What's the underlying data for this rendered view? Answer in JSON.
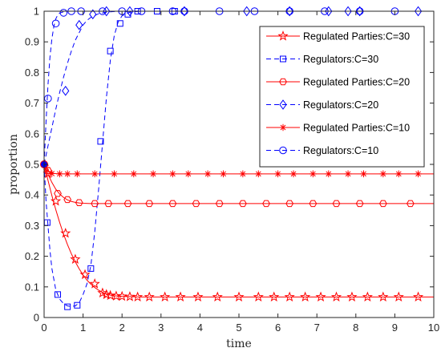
{
  "chart_data": {
    "type": "line",
    "title": "",
    "xlabel": "time",
    "ylabel": "proportion",
    "xlim": [
      0,
      10
    ],
    "ylim": [
      0,
      1
    ],
    "xticks": [
      "0",
      "1",
      "2",
      "3",
      "4",
      "5",
      "6",
      "7",
      "8",
      "9",
      "10"
    ],
    "yticks": [
      "0",
      "0.1",
      "0.2",
      "0.3",
      "0.4",
      "0.5",
      "0.6",
      "0.7",
      "0.8",
      "0.9",
      "1"
    ],
    "grid": false,
    "legend_position": "top-right",
    "colors": {
      "regulated": "#ff0000",
      "regulators": "#0000ff"
    },
    "series": [
      {
        "name": "Regulated Parties:C=30",
        "color": "#ff0000",
        "line": "solid",
        "marker": "star5",
        "x": [
          0,
          0.1,
          0.2,
          0.3,
          0.4,
          0.5,
          0.6,
          0.7,
          0.8,
          0.9,
          1.0,
          1.1,
          1.2,
          1.3,
          1.4,
          1.5,
          1.6,
          1.7,
          1.8,
          2.0,
          2.2,
          2.5,
          2.8,
          3.0,
          10.0
        ],
        "y": [
          0.5,
          0.448,
          0.398,
          0.352,
          0.31,
          0.272,
          0.238,
          0.208,
          0.182,
          0.159,
          0.139,
          0.122,
          0.109,
          0.098,
          0.089,
          0.082,
          0.077,
          0.073,
          0.071,
          0.069,
          0.068,
          0.067,
          0.067,
          0.067,
          0.067
        ],
        "markers_x": [
          0.1,
          0.3,
          0.55,
          0.8,
          1.05,
          1.3,
          1.5,
          1.6,
          1.7,
          1.85,
          2.0,
          2.2,
          2.4,
          2.7,
          3.1,
          3.5,
          3.95,
          4.45,
          5.0,
          5.5,
          5.9,
          6.3,
          6.7,
          7.1,
          7.5,
          7.9,
          8.3,
          8.7,
          9.1,
          9.6
        ],
        "markers_y": [
          0.47,
          0.38,
          0.275,
          0.19,
          0.14,
          0.11,
          0.08,
          0.075,
          0.072,
          0.07,
          0.069,
          0.068,
          0.067,
          0.067,
          0.067,
          0.067,
          0.067,
          0.067,
          0.067,
          0.067,
          0.067,
          0.067,
          0.067,
          0.067,
          0.067,
          0.067,
          0.067,
          0.067,
          0.067,
          0.067
        ]
      },
      {
        "name": "Regulators:C=30",
        "color": "#0000ff",
        "line": "dashed",
        "marker": "square",
        "x": [
          0,
          0.05,
          0.1,
          0.15,
          0.2,
          0.3,
          0.4,
          0.5,
          0.6,
          0.7,
          0.8,
          0.9,
          1.0,
          1.1,
          1.2,
          1.3,
          1.4,
          1.5,
          1.6,
          1.7,
          1.8,
          1.9,
          2.0,
          2.2,
          2.5,
          10.0
        ],
        "y": [
          0.5,
          0.38,
          0.3,
          0.22,
          0.16,
          0.09,
          0.06,
          0.045,
          0.038,
          0.036,
          0.038,
          0.048,
          0.075,
          0.11,
          0.17,
          0.28,
          0.42,
          0.57,
          0.72,
          0.84,
          0.92,
          0.965,
          0.985,
          0.997,
          1.0,
          1.0
        ],
        "markers_x": [
          0.08,
          0.35,
          0.6,
          0.85,
          1.2,
          1.45,
          1.7,
          1.95,
          2.15,
          2.4,
          2.9,
          3.35
        ],
        "markers_y": [
          0.31,
          0.075,
          0.035,
          0.04,
          0.16,
          0.575,
          0.87,
          0.96,
          0.99,
          1.0,
          1.0,
          1.0
        ]
      },
      {
        "name": "Regulated Parties:C=20",
        "color": "#ff0000",
        "line": "solid",
        "marker": "hexagon",
        "x": [
          0,
          0.1,
          0.2,
          0.3,
          0.4,
          0.5,
          0.6,
          0.7,
          0.8,
          0.9,
          1.0,
          1.2,
          1.5,
          2.0,
          10.0
        ],
        "y": [
          0.5,
          0.468,
          0.441,
          0.419,
          0.403,
          0.392,
          0.384,
          0.379,
          0.376,
          0.374,
          0.373,
          0.372,
          0.372,
          0.372,
          0.372
        ],
        "markers_x": [
          0.1,
          0.35,
          0.6,
          0.9,
          1.3,
          1.65,
          2.15,
          2.7,
          3.3,
          3.9,
          4.5,
          5.1,
          5.7,
          6.3,
          6.9,
          7.5,
          8.1,
          8.7,
          9.4
        ],
        "markers_y": [
          0.48,
          0.405,
          0.385,
          0.375,
          0.372,
          0.372,
          0.372,
          0.372,
          0.372,
          0.372,
          0.372,
          0.372,
          0.372,
          0.372,
          0.372,
          0.372,
          0.372,
          0.372,
          0.372
        ]
      },
      {
        "name": "Regulators:C=20",
        "color": "#0000ff",
        "line": "dashed",
        "marker": "diamond",
        "x": [
          0,
          0.1,
          0.2,
          0.3,
          0.4,
          0.5,
          0.6,
          0.7,
          0.8,
          0.9,
          1.0,
          1.1,
          1.2,
          1.4,
          1.6,
          1.8,
          2.0,
          10.0
        ],
        "y": [
          0.5,
          0.56,
          0.62,
          0.68,
          0.735,
          0.785,
          0.83,
          0.87,
          0.905,
          0.93,
          0.955,
          0.97,
          0.98,
          0.992,
          0.997,
          0.999,
          1.0,
          1.0
        ],
        "markers_x": [
          0.55,
          0.9,
          1.25,
          1.6,
          2.2,
          3.6,
          5.2,
          6.3,
          7.3,
          7.8,
          8.1,
          9.6
        ],
        "markers_y": [
          0.74,
          0.955,
          0.99,
          1.0,
          1.0,
          1.0,
          1.0,
          1.0,
          1.0,
          1.0,
          1.0,
          1.0
        ]
      },
      {
        "name": "Regulated Parties:C=10",
        "color": "#ff0000",
        "line": "solid",
        "marker": "asterisk",
        "x": [
          0,
          0.05,
          0.1,
          0.15,
          0.2,
          0.3,
          0.5,
          10.0
        ],
        "y": [
          0.5,
          0.485,
          0.477,
          0.473,
          0.471,
          0.47,
          0.469,
          0.469
        ],
        "markers_x": [
          0.05,
          0.2,
          0.4,
          0.6,
          0.85,
          1.3,
          1.8,
          2.3,
          2.8,
          3.3,
          3.7,
          4.2,
          4.6,
          5.1,
          5.5,
          6.0,
          6.4,
          6.9,
          7.3,
          7.8,
          8.2,
          8.7,
          9.1,
          9.6
        ],
        "markers_y": [
          0.49,
          0.47,
          0.469,
          0.469,
          0.469,
          0.469,
          0.469,
          0.469,
          0.469,
          0.469,
          0.469,
          0.469,
          0.469,
          0.469,
          0.469,
          0.469,
          0.469,
          0.469,
          0.469,
          0.469,
          0.469,
          0.469,
          0.469,
          0.469
        ]
      },
      {
        "name": "Regulators:C=10",
        "color": "#0000ff",
        "line": "dashed",
        "marker": "circle",
        "x": [
          0,
          0.05,
          0.1,
          0.15,
          0.2,
          0.25,
          0.3,
          0.35,
          0.4,
          0.5,
          0.6,
          0.8,
          1.0,
          10.0
        ],
        "y": [
          0.5,
          0.64,
          0.76,
          0.85,
          0.91,
          0.95,
          0.975,
          0.988,
          0.994,
          0.998,
          1.0,
          1.0,
          1.0,
          1.0
        ],
        "markers_x": [
          0.1,
          0.3,
          0.5,
          0.7,
          0.95,
          1.5,
          2.0,
          2.5,
          3.3,
          3.6,
          4.5,
          5.4,
          6.3,
          7.2,
          8.1,
          9.0
        ],
        "markers_y": [
          0.715,
          0.96,
          0.995,
          1.0,
          1.0,
          1.0,
          1.0,
          1.0,
          1.0,
          1.0,
          1.0,
          1.0,
          1.0,
          1.0,
          1.0,
          1.0
        ]
      }
    ]
  }
}
